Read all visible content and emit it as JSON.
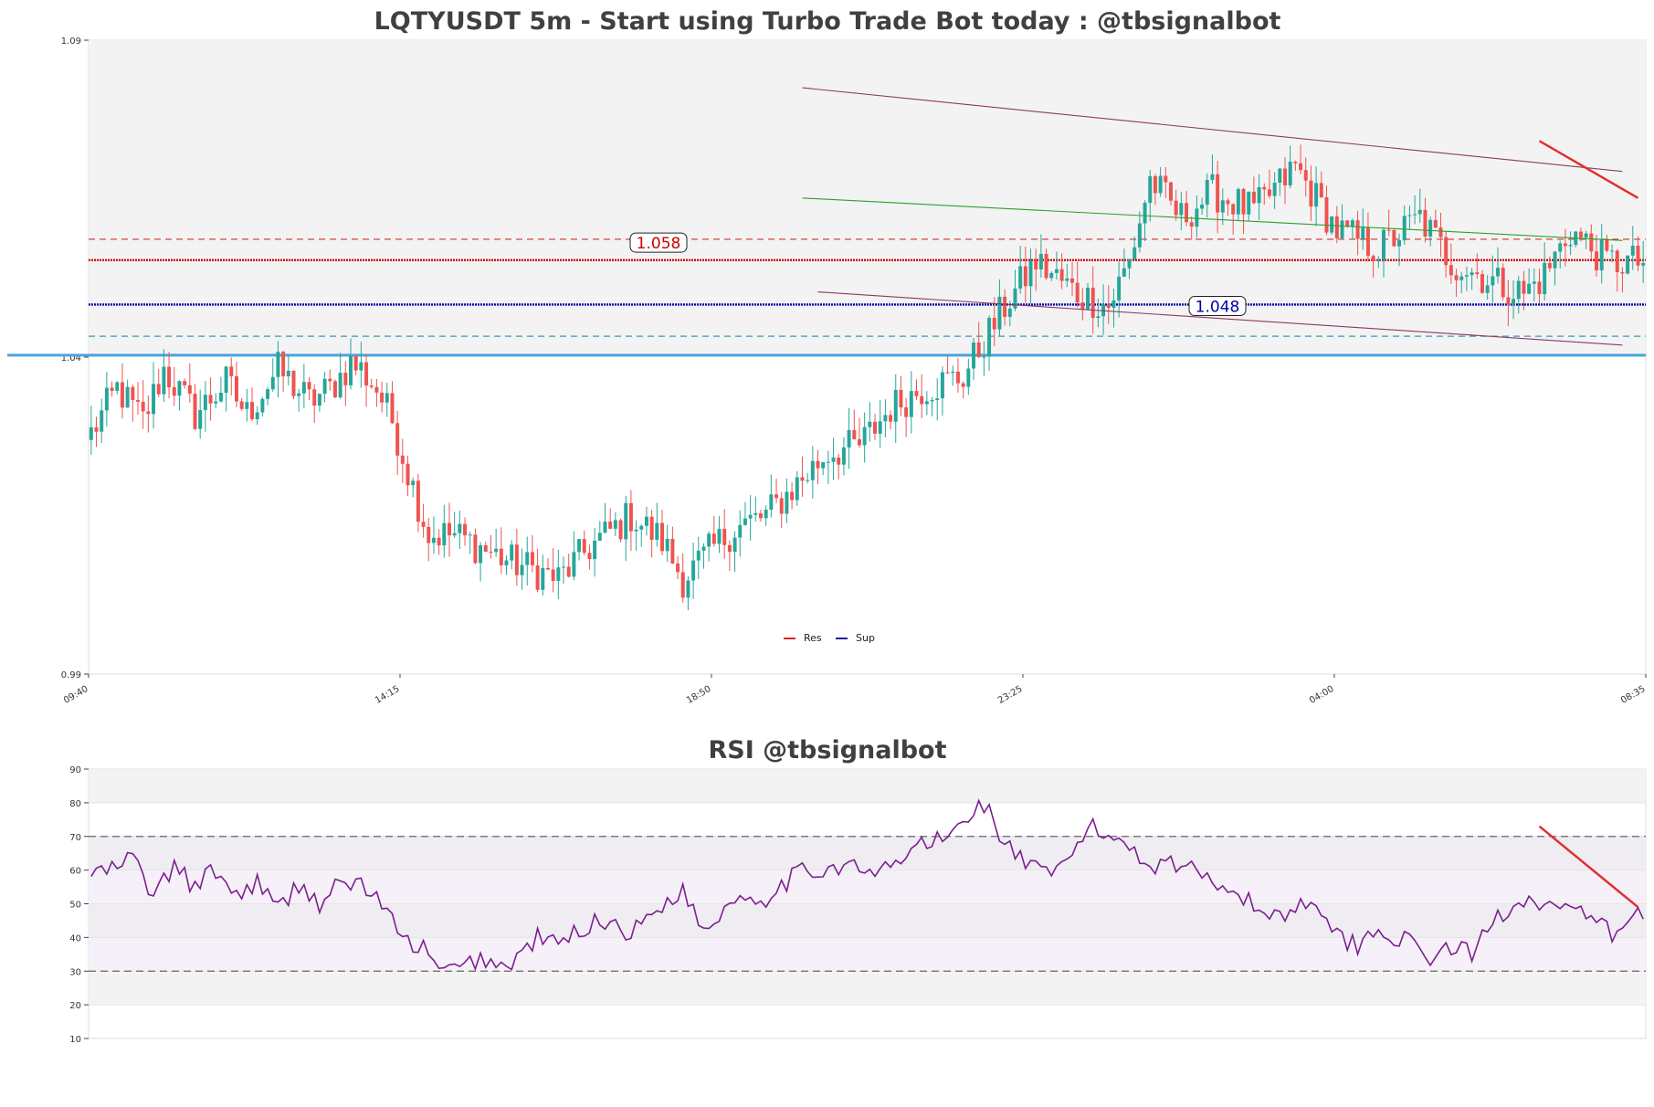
{
  "chart_data": [
    {
      "type": "candlestick",
      "title": "LQTYUSDT 5m - Start using Turbo Trade Bot today : @tbsignalbot",
      "ylim": [
        0.99,
        1.09
      ],
      "y_ticks": [
        0.99,
        1.04,
        1.09
      ],
      "x_tick_labels": [
        "09:40",
        "14:15",
        "18:50",
        "23:25",
        "04:00",
        "08:35"
      ],
      "candle_count": 300,
      "up_color": "#26a69a",
      "down_color": "#ef5350",
      "anchors": [
        [
          0,
          1.028
        ],
        [
          5,
          1.035
        ],
        [
          10,
          1.03
        ],
        [
          14,
          1.038
        ],
        [
          20,
          1.031
        ],
        [
          26,
          1.036
        ],
        [
          30,
          1.031
        ],
        [
          36,
          1.038
        ],
        [
          42,
          1.033
        ],
        [
          46,
          1.035
        ],
        [
          50,
          1.039
        ],
        [
          52,
          1.038
        ],
        [
          55,
          1.035
        ],
        [
          58,
          1.03
        ],
        [
          61,
          1.022
        ],
        [
          65,
          1.012
        ],
        [
          70,
          1.012
        ],
        [
          80,
          1.008
        ],
        [
          90,
          1.005
        ],
        [
          96,
          1.01
        ],
        [
          104,
          1.015
        ],
        [
          110,
          1.011
        ],
        [
          114,
          1.005
        ],
        [
          120,
          1.01
        ],
        [
          124,
          1.013
        ],
        [
          130,
          1.015
        ],
        [
          136,
          1.02
        ],
        [
          142,
          1.025
        ],
        [
          148,
          1.026
        ],
        [
          154,
          1.032
        ],
        [
          160,
          1.035
        ],
        [
          168,
          1.037
        ],
        [
          176,
          1.048
        ],
        [
          182,
          1.055
        ],
        [
          190,
          1.05
        ],
        [
          196,
          1.048
        ],
        [
          200,
          1.055
        ],
        [
          204,
          1.068
        ],
        [
          210,
          1.062
        ],
        [
          216,
          1.066
        ],
        [
          224,
          1.063
        ],
        [
          232,
          1.07
        ],
        [
          240,
          1.06
        ],
        [
          248,
          1.057
        ],
        [
          256,
          1.062
        ],
        [
          262,
          1.055
        ],
        [
          270,
          1.052
        ],
        [
          276,
          1.05
        ],
        [
          280,
          1.053
        ],
        [
          285,
          1.06
        ],
        [
          292,
          1.055
        ],
        [
          298,
          1.055
        ]
      ],
      "legend": [
        {
          "name": "Res",
          "color": "#d62728"
        },
        {
          "name": "Sup",
          "color": "#1f1f9f"
        }
      ],
      "legend_position": "lower-center",
      "annotations": [
        {
          "text": "1.058",
          "value": 1.058,
          "color": "#cc0000"
        },
        {
          "text": "1.048",
          "value": 1.048,
          "color": "#0000aa"
        }
      ],
      "horizontal_lines": [
        {
          "value": 1.0553,
          "color": "#cc0000",
          "style": "dense"
        },
        {
          "value": 1.0586,
          "color": "#cc3333",
          "style": "dashed"
        },
        {
          "value": 1.0483,
          "color": "#0000aa",
          "style": "dense"
        },
        {
          "value": 1.0433,
          "color": "#3399bb",
          "style": "dashed"
        },
        {
          "value": 1.0403,
          "color": "#4aa3df",
          "style": "solid-thick"
        }
      ],
      "trend_lines": [
        {
          "from": [
            137,
            1.0825
          ],
          "to": [
            295,
            1.0693
          ],
          "color": "#8b3a62"
        },
        {
          "from": [
            137,
            1.0651
          ],
          "to": [
            295,
            1.0584
          ],
          "color": "#2ca02c"
        },
        {
          "from": [
            140,
            1.0503
          ],
          "to": [
            295,
            1.0419
          ],
          "color": "#8b3a62"
        },
        {
          "from": [
            279,
            1.0741
          ],
          "to": [
            298,
            1.0651
          ],
          "color": "#e03030",
          "width": 2.5
        }
      ]
    },
    {
      "type": "line",
      "title": "RSI @tbsignalbot",
      "ylim": [
        10,
        90
      ],
      "y_ticks": [
        10,
        20,
        30,
        40,
        50,
        60,
        70,
        80,
        90
      ],
      "line_color": "#7b1f8f",
      "reference_lines": [
        30,
        70
      ],
      "anchors": [
        [
          0,
          59
        ],
        [
          4,
          60
        ],
        [
          8,
          64
        ],
        [
          12,
          52
        ],
        [
          16,
          61
        ],
        [
          20,
          55
        ],
        [
          24,
          60
        ],
        [
          28,
          52
        ],
        [
          32,
          57
        ],
        [
          36,
          48
        ],
        [
          40,
          56
        ],
        [
          44,
          50
        ],
        [
          48,
          56
        ],
        [
          52,
          56
        ],
        [
          56,
          50
        ],
        [
          60,
          39
        ],
        [
          64,
          37
        ],
        [
          66,
          31
        ],
        [
          70,
          30
        ],
        [
          75,
          34
        ],
        [
          80,
          31
        ],
        [
          86,
          40
        ],
        [
          90,
          38
        ],
        [
          96,
          44
        ],
        [
          100,
          45
        ],
        [
          104,
          41
        ],
        [
          110,
          50
        ],
        [
          114,
          54
        ],
        [
          118,
          42
        ],
        [
          124,
          52
        ],
        [
          130,
          52
        ],
        [
          136,
          59
        ],
        [
          140,
          60
        ],
        [
          146,
          62
        ],
        [
          150,
          58
        ],
        [
          156,
          63
        ],
        [
          160,
          68
        ],
        [
          165,
          69
        ],
        [
          168,
          75
        ],
        [
          172,
          80
        ],
        [
          176,
          68
        ],
        [
          180,
          62
        ],
        [
          184,
          58
        ],
        [
          188,
          62
        ],
        [
          192,
          73
        ],
        [
          196,
          70
        ],
        [
          200,
          68
        ],
        [
          204,
          61
        ],
        [
          208,
          63
        ],
        [
          212,
          60
        ],
        [
          216,
          58
        ],
        [
          220,
          54
        ],
        [
          226,
          47
        ],
        [
          230,
          47
        ],
        [
          236,
          52
        ],
        [
          240,
          40
        ],
        [
          244,
          38
        ],
        [
          248,
          42
        ],
        [
          252,
          40
        ],
        [
          258,
          34
        ],
        [
          262,
          37
        ],
        [
          266,
          35
        ],
        [
          270,
          45
        ],
        [
          276,
          52
        ],
        [
          280,
          50
        ],
        [
          286,
          47
        ],
        [
          290,
          45
        ],
        [
          294,
          40
        ],
        [
          298,
          47
        ]
      ],
      "trend_lines": [
        {
          "from": [
            279,
            73
          ],
          "to": [
            298,
            49
          ],
          "color": "#e03030",
          "width": 2.5
        }
      ]
    }
  ]
}
